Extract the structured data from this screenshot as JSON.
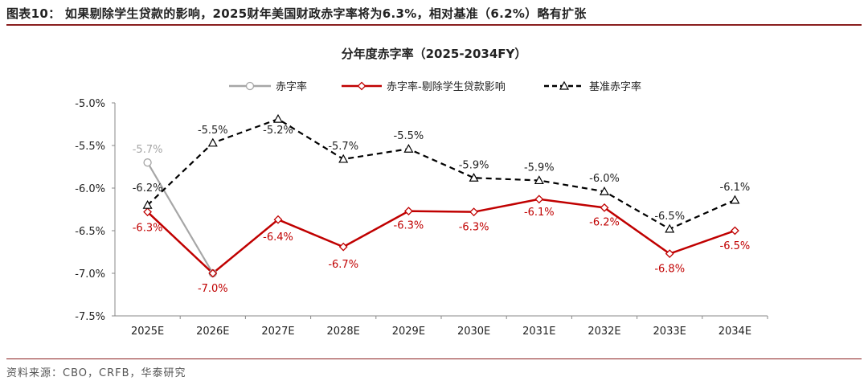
{
  "header": {
    "text": "图表10： 如果剔除学生贷款的影响，2025财年美国财政赤字率将为6.3%，相对基准（6.2%）略有扩张"
  },
  "footer": {
    "text": "资料来源：CBO，CRFB，华泰研究"
  },
  "colors": {
    "accent": "#8a1f1f",
    "series_deficit": "#a6a6a6",
    "series_excl": "#c00000",
    "series_baseline": "#000000"
  },
  "chart_data": {
    "type": "line",
    "title": "分年度赤字率（2025-2034FY）",
    "xlabel": "",
    "ylabel": "",
    "categories": [
      "2025E",
      "2026E",
      "2027E",
      "2028E",
      "2029E",
      "2030E",
      "2031E",
      "2032E",
      "2033E",
      "2034E"
    ],
    "ylim": [
      -7.5,
      -5.0
    ],
    "yticks": [
      "-5.0%",
      "-5.5%",
      "-6.0%",
      "-6.5%",
      "-7.0%",
      "-7.5%"
    ],
    "ytick_values": [
      -5.0,
      -5.5,
      -6.0,
      -6.5,
      -7.0,
      -7.5
    ],
    "grid": false,
    "legend_position": "top-center",
    "series": [
      {
        "name": "赤字率",
        "values": [
          -5.7,
          -7.0,
          null,
          null,
          null,
          null,
          null,
          null,
          null,
          null
        ],
        "labels": [
          "-5.7%",
          "",
          "",
          "",
          "",
          "",
          "",
          "",
          "",
          ""
        ],
        "color": "#a6a6a6",
        "marker": "circle",
        "dash": "solid"
      },
      {
        "name": "赤字率-剔除学生贷款影响",
        "values": [
          -6.28,
          -7.0,
          -6.37,
          -6.69,
          -6.27,
          -6.28,
          -6.13,
          -6.23,
          -6.77,
          -6.5
        ],
        "labels": [
          "-6.3%",
          "-7.0%",
          "-6.4%",
          "-6.7%",
          "-6.3%",
          "-6.3%",
          "-6.1%",
          "-6.2%",
          "-6.8%",
          "-6.5%"
        ],
        "color": "#c00000",
        "marker": "diamond",
        "dash": "solid"
      },
      {
        "name": "基准赤字率",
        "values": [
          -6.2,
          -5.47,
          -5.19,
          -5.66,
          -5.54,
          -5.88,
          -5.91,
          -6.04,
          -6.48,
          -6.14
        ],
        "labels": [
          "-6.2%",
          "-5.5%",
          "-5.2%",
          "-5.7%",
          "-5.5%",
          "-5.9%",
          "-5.9%",
          "-6.0%",
          "-6.5%",
          "-6.1%"
        ],
        "color": "#000000",
        "marker": "triangle",
        "dash": "dashed"
      }
    ]
  }
}
